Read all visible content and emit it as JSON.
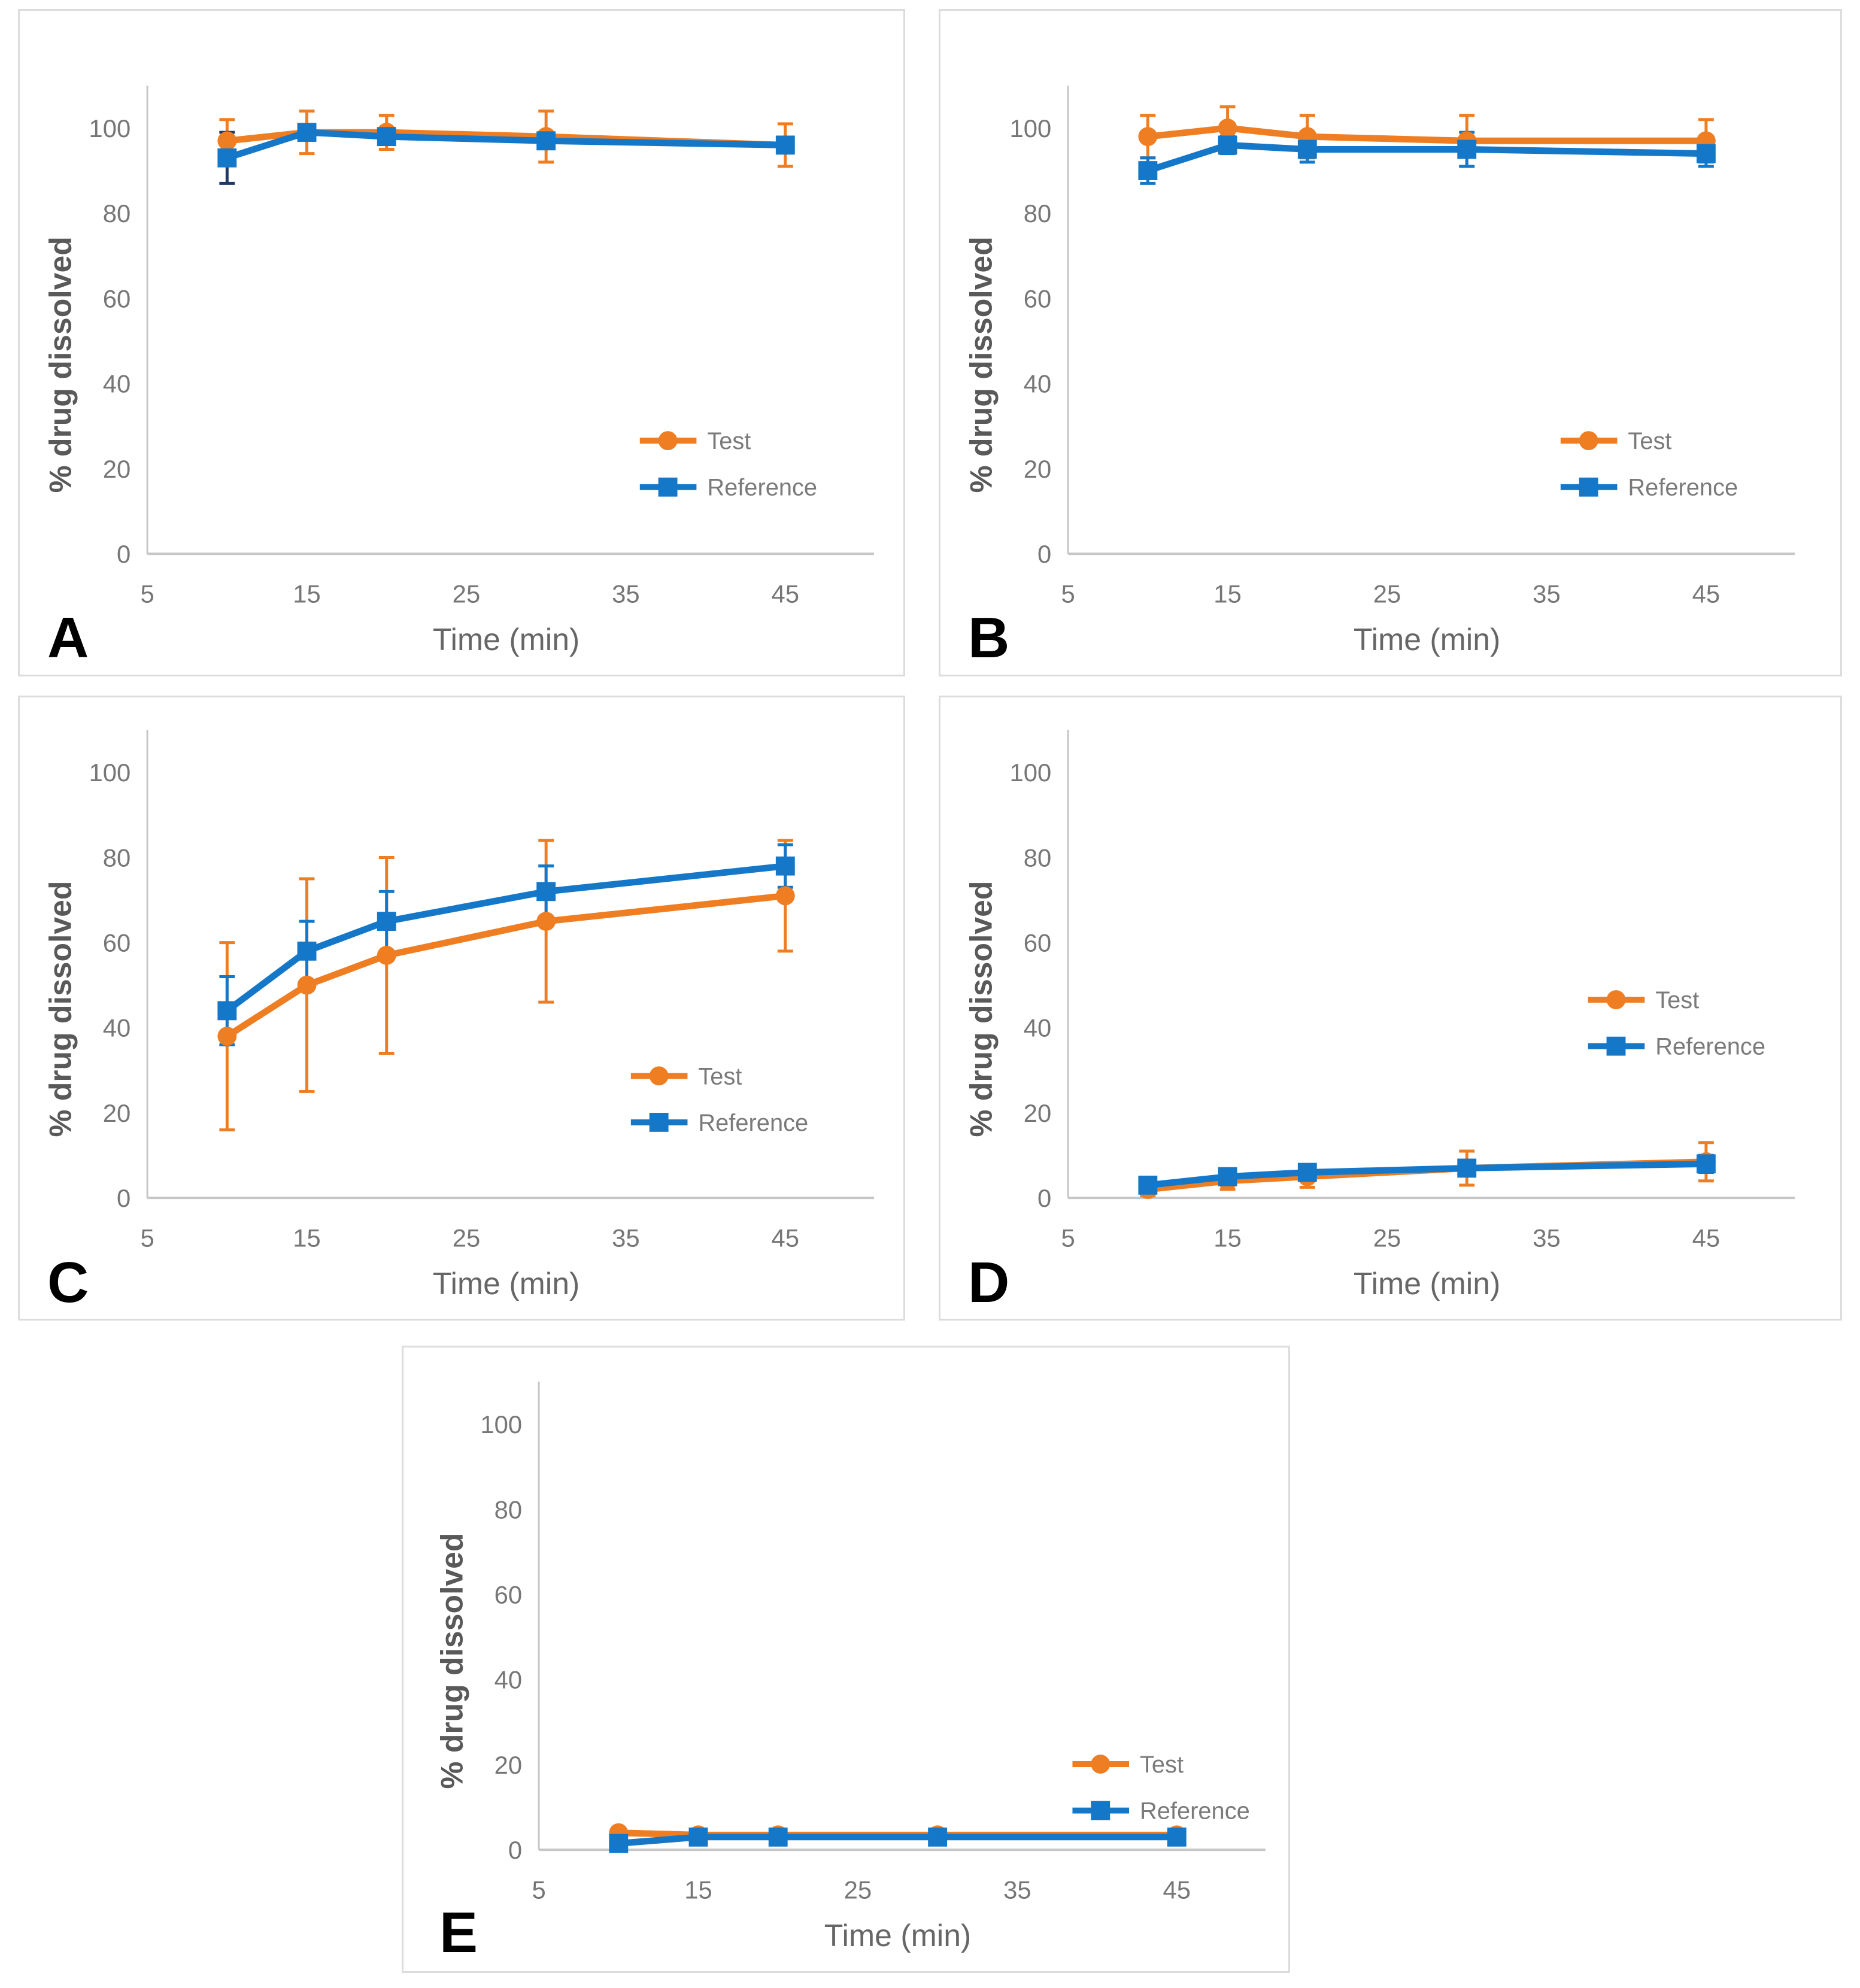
{
  "figure": {
    "description": "Dissolution profiles: % drug dissolved vs time for Test and Reference products, panels A-E"
  },
  "legend": {
    "test_label": "Test",
    "reference_label": "Reference"
  },
  "colors": {
    "test_orange": "#EF7D22",
    "reference_blue": "#1577C8",
    "navy_error_bar": "#1F3864",
    "axis_line_gray": "#C6C6C6",
    "tick_text_gray": "#767676",
    "axis_title_gray": "#595959",
    "legend_text_gray": "#7A7A7A",
    "panel_border_gray": "#DCDCDC"
  },
  "chart_data": [
    {
      "panel": "A",
      "type": "line",
      "xlabel": "Time (min)",
      "ylabel": "% drug dissolved",
      "x": [
        10,
        15,
        20,
        30,
        45
      ],
      "xlim": [
        5,
        50
      ],
      "ylim": [
        0,
        110
      ],
      "x_ticks": [
        5,
        15,
        25,
        35,
        45
      ],
      "y_ticks": [
        0,
        20,
        40,
        60,
        80,
        100
      ],
      "grid": false,
      "legend_position": "inside-right",
      "series": [
        {
          "name": "Test",
          "marker": "circle",
          "color": "#EF7D22",
          "values": [
            97,
            99,
            99,
            98,
            96
          ],
          "err": [
            5,
            5,
            4,
            6,
            5
          ]
        },
        {
          "name": "Reference",
          "marker": "square",
          "color": "#1577C8",
          "err_color": "#1F3864",
          "values": [
            93,
            99,
            98,
            97,
            96
          ],
          "err": [
            6,
            1,
            1,
            1,
            1
          ]
        }
      ]
    },
    {
      "panel": "B",
      "type": "line",
      "xlabel": "Time (min)",
      "ylabel": "% drug dissolved",
      "x": [
        10,
        15,
        20,
        30,
        45
      ],
      "xlim": [
        5,
        50
      ],
      "ylim": [
        0,
        110
      ],
      "x_ticks": [
        5,
        15,
        25,
        35,
        45
      ],
      "y_ticks": [
        0,
        20,
        40,
        60,
        80,
        100
      ],
      "grid": false,
      "legend_position": "inside-right",
      "series": [
        {
          "name": "Test",
          "marker": "circle",
          "color": "#EF7D22",
          "values": [
            98,
            100,
            98,
            97,
            97
          ],
          "err": [
            5,
            5,
            5,
            6,
            5
          ]
        },
        {
          "name": "Reference",
          "marker": "square",
          "color": "#1577C8",
          "values": [
            90,
            96,
            95,
            95,
            94
          ],
          "err": [
            3,
            2,
            3,
            4,
            3
          ]
        }
      ]
    },
    {
      "panel": "C",
      "type": "line",
      "xlabel": "Time (min)",
      "ylabel": "% drug dissolved",
      "x": [
        10,
        15,
        20,
        30,
        45
      ],
      "xlim": [
        5,
        50
      ],
      "ylim": [
        0,
        110
      ],
      "x_ticks": [
        5,
        15,
        25,
        35,
        45
      ],
      "y_ticks": [
        0,
        20,
        40,
        60,
        80,
        100
      ],
      "grid": false,
      "legend_position": "inside-right",
      "series": [
        {
          "name": "Test",
          "marker": "circle",
          "color": "#EF7D22",
          "values": [
            38,
            50,
            57,
            65,
            71
          ],
          "err": [
            22,
            25,
            23,
            19,
            13
          ]
        },
        {
          "name": "Reference",
          "marker": "square",
          "color": "#1577C8",
          "values": [
            44,
            58,
            65,
            72,
            78
          ],
          "err": [
            8,
            7,
            7,
            6,
            5
          ]
        }
      ]
    },
    {
      "panel": "D",
      "type": "line",
      "xlabel": "Time (min)",
      "ylabel": "% drug dissolved",
      "x": [
        10,
        15,
        20,
        30,
        45
      ],
      "xlim": [
        5,
        50
      ],
      "ylim": [
        0,
        110
      ],
      "x_ticks": [
        5,
        15,
        25,
        35,
        45
      ],
      "y_ticks": [
        0,
        20,
        40,
        60,
        80,
        100
      ],
      "grid": false,
      "legend_position": "inside-right",
      "series": [
        {
          "name": "Test",
          "marker": "circle",
          "color": "#EF7D22",
          "values": [
            2,
            4,
            5,
            7,
            8.5
          ],
          "err": [
            1.5,
            2,
            2.5,
            4,
            4.5
          ]
        },
        {
          "name": "Reference",
          "marker": "square",
          "color": "#1577C8",
          "values": [
            3,
            5,
            6,
            7,
            8
          ],
          "err": [
            1,
            1,
            1,
            1,
            2
          ]
        }
      ]
    },
    {
      "panel": "E",
      "type": "line",
      "xlabel": "Time (min)",
      "ylabel": "% drug dissolved",
      "x": [
        10,
        15,
        20,
        30,
        45
      ],
      "xlim": [
        5,
        50
      ],
      "ylim": [
        0,
        110
      ],
      "x_ticks": [
        5,
        15,
        25,
        35,
        45
      ],
      "y_ticks": [
        0,
        20,
        40,
        60,
        80,
        100
      ],
      "grid": false,
      "legend_position": "inside-right",
      "series": [
        {
          "name": "Test",
          "marker": "circle",
          "color": "#EF7D22",
          "values": [
            4,
            3.5,
            3.5,
            3.5,
            3.5
          ],
          "err": [
            0.5,
            0.5,
            0.5,
            0.5,
            0.5
          ]
        },
        {
          "name": "Reference",
          "marker": "square",
          "color": "#1577C8",
          "values": [
            1.5,
            3,
            3,
            3,
            3
          ],
          "err": [
            0.5,
            0.5,
            0.5,
            0.5,
            0.5
          ]
        }
      ]
    }
  ]
}
